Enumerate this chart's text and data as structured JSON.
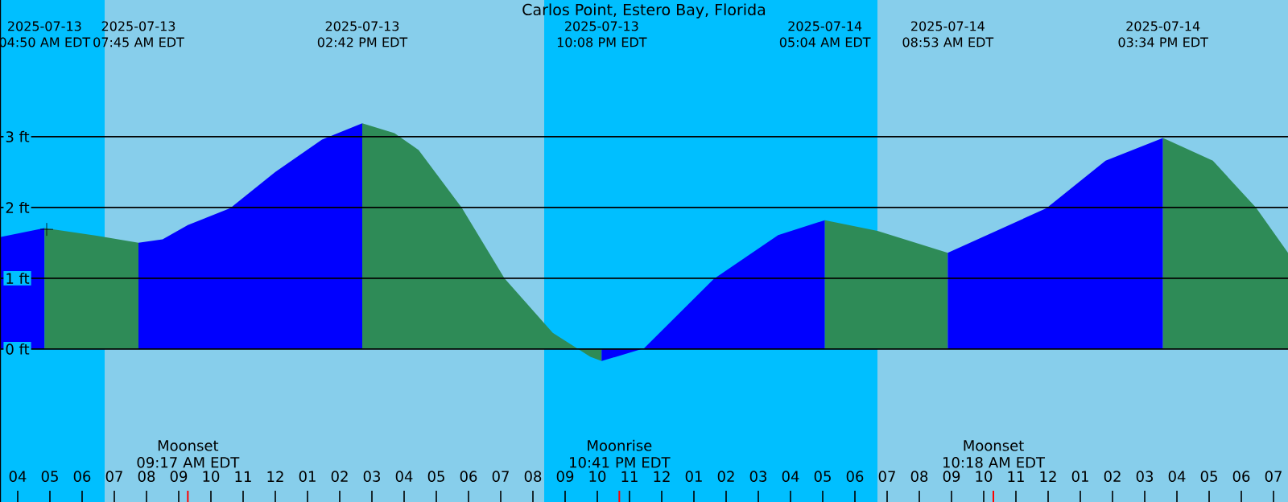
{
  "chart_data": {
    "type": "area",
    "title": "Carlos Point, Estero Bay, Florida",
    "xlim": [
      "2025-07-13T03:27",
      "2025-07-14T19:27"
    ],
    "ylim": [
      -2.16,
      4.93
    ],
    "xticks": [
      {
        "value": "2025-07-13T04:00",
        "label": "04"
      },
      {
        "value": "2025-07-13T05:00",
        "label": "05"
      },
      {
        "value": "2025-07-13T06:00",
        "label": "06"
      },
      {
        "value": "2025-07-13T07:00",
        "label": "07"
      },
      {
        "value": "2025-07-13T08:00",
        "label": "08"
      },
      {
        "value": "2025-07-13T09:00",
        "label": "09"
      },
      {
        "value": "2025-07-13T10:00",
        "label": "10"
      },
      {
        "value": "2025-07-13T11:00",
        "label": "11"
      },
      {
        "value": "2025-07-13T12:00",
        "label": "12"
      },
      {
        "value": "2025-07-13T13:00",
        "label": "01"
      },
      {
        "value": "2025-07-13T14:00",
        "label": "02"
      },
      {
        "value": "2025-07-13T15:00",
        "label": "03"
      },
      {
        "value": "2025-07-13T16:00",
        "label": "04"
      },
      {
        "value": "2025-07-13T17:00",
        "label": "05"
      },
      {
        "value": "2025-07-13T18:00",
        "label": "06"
      },
      {
        "value": "2025-07-13T19:00",
        "label": "07"
      },
      {
        "value": "2025-07-13T20:00",
        "label": "08"
      },
      {
        "value": "2025-07-13T21:00",
        "label": "09"
      },
      {
        "value": "2025-07-13T22:00",
        "label": "10"
      },
      {
        "value": "2025-07-13T23:00",
        "label": "11"
      },
      {
        "value": "2025-07-14T00:00",
        "label": "12"
      },
      {
        "value": "2025-07-14T01:00",
        "label": "01"
      },
      {
        "value": "2025-07-14T02:00",
        "label": "02"
      },
      {
        "value": "2025-07-14T03:00",
        "label": "03"
      },
      {
        "value": "2025-07-14T04:00",
        "label": "04"
      },
      {
        "value": "2025-07-14T05:00",
        "label": "05"
      },
      {
        "value": "2025-07-14T06:00",
        "label": "06"
      },
      {
        "value": "2025-07-14T07:00",
        "label": "07"
      },
      {
        "value": "2025-07-14T08:00",
        "label": "08"
      },
      {
        "value": "2025-07-14T09:00",
        "label": "09"
      },
      {
        "value": "2025-07-14T10:00",
        "label": "10"
      },
      {
        "value": "2025-07-14T11:00",
        "label": "11"
      },
      {
        "value": "2025-07-14T12:00",
        "label": "12"
      },
      {
        "value": "2025-07-14T13:00",
        "label": "01"
      },
      {
        "value": "2025-07-14T14:00",
        "label": "02"
      },
      {
        "value": "2025-07-14T15:00",
        "label": "03"
      },
      {
        "value": "2025-07-14T16:00",
        "label": "04"
      },
      {
        "value": "2025-07-14T17:00",
        "label": "05"
      },
      {
        "value": "2025-07-14T18:00",
        "label": "06"
      },
      {
        "value": "2025-07-14T19:00",
        "label": "07"
      }
    ],
    "yticks": [
      {
        "value": 0,
        "label": "0 ft"
      },
      {
        "value": 1,
        "label": "1 ft"
      },
      {
        "value": 2,
        "label": "2 ft"
      },
      {
        "value": 3,
        "label": "3 ft"
      }
    ],
    "x2lim": [
      "2025-07-13T03:27",
      "2025-07-14T19:27"
    ],
    "x2ticks": [
      {
        "value": "2025-07-13T04:50",
        "label": "2025-07-13 04:50 AM EDT"
      },
      {
        "value": "2025-07-13T07:45",
        "label": "2025-07-13 07:45 AM EDT"
      },
      {
        "value": "2025-07-13T14:42",
        "label": "2025-07-13 02:42 PM EDT"
      },
      {
        "value": "2025-07-13T22:08",
        "label": "2025-07-13 10:08 PM EDT"
      },
      {
        "value": "2025-07-14T05:04",
        "label": "2025-07-14 05:04 AM EDT"
      },
      {
        "value": "2025-07-14T08:53",
        "label": "2025-07-14 08:53 AM EDT"
      },
      {
        "value": "2025-07-14T15:34",
        "label": "2025-07-14 03:34 PM EDT"
      }
    ],
    "grid": "y",
    "bands": [
      {
        "axis": "x",
        "from": "2025-07-13T03:27",
        "to": "2025-07-13T06:42",
        "color": "#00bfff"
      },
      {
        "axis": "x",
        "from": "2025-07-13T06:42",
        "to": "2025-07-13T20:21",
        "color": "#87ceeb"
      },
      {
        "axis": "x",
        "from": "2025-07-13T20:21",
        "to": "2025-07-14T06:42",
        "color": "#00bfff"
      },
      {
        "axis": "x",
        "from": "2025-07-14T06:42",
        "to": "2025-07-14T19:27",
        "color": "#87ceeb"
      }
    ],
    "series": [
      {
        "color": "#0000ff",
        "x": [
          "2025-07-13T03:27",
          "2025-07-13T04:50"
        ],
        "values": [
          1.58,
          1.71
        ]
      },
      {
        "color": "#2e8b57",
        "x": [
          "2025-07-13T04:50",
          "2025-07-13T06:27",
          "2025-07-13T07:45"
        ],
        "values": [
          1.71,
          1.6,
          1.5
        ]
      },
      {
        "color": "#0000ff",
        "x": [
          "2025-07-13T07:45",
          "2025-07-13T08:30",
          "2025-07-13T09:17",
          "2025-07-13T10:36",
          "2025-07-13T12:00",
          "2025-07-13T13:27",
          "2025-07-13T14:42"
        ],
        "values": [
          1.5,
          1.55,
          1.75,
          1.99,
          2.5,
          2.96,
          3.19
        ]
      },
      {
        "color": "#2e8b57",
        "x": [
          "2025-07-13T14:42",
          "2025-07-13T15:42",
          "2025-07-13T16:27",
          "2025-07-13T17:47",
          "2025-07-13T19:07",
          "2025-07-13T20:37",
          "2025-07-13T21:47",
          "2025-07-13T22:08"
        ],
        "values": [
          3.19,
          3.05,
          2.81,
          2.0,
          1.0,
          0.23,
          -0.11,
          -0.17
        ]
      },
      {
        "color": "#0000ff",
        "x": [
          "2025-07-13T22:08",
          "2025-07-13T23:27",
          "2025-07-14T01:37",
          "2025-07-14T03:37",
          "2025-07-14T05:04"
        ],
        "values": [
          -0.17,
          0.01,
          0.99,
          1.61,
          1.82
        ]
      },
      {
        "color": "#2e8b57",
        "x": [
          "2025-07-14T05:04",
          "2025-07-14T06:42",
          "2025-07-14T08:53"
        ],
        "values": [
          1.82,
          1.67,
          1.36
        ]
      },
      {
        "color": "#0000ff",
        "x": [
          "2025-07-14T08:53",
          "2025-07-14T11:57",
          "2025-07-14T13:47",
          "2025-07-14T15:34"
        ],
        "values": [
          1.36,
          1.99,
          2.66,
          2.98
        ]
      },
      {
        "color": "#2e8b57",
        "x": [
          "2025-07-14T15:34",
          "2025-07-14T17:07",
          "2025-07-14T18:27",
          "2025-07-14T19:27"
        ],
        "values": [
          2.98,
          2.66,
          2.0,
          1.36
        ]
      },
      {
        "type": "scatter",
        "color": "#000000",
        "marker": "cross",
        "x": [
          "2025-07-13T04:54"
        ],
        "values": [
          1.69
        ]
      }
    ],
    "annotations": [
      {
        "text": "Moonset 09:17 AM EDT",
        "x": "2025-07-13T09:17",
        "y": -2.16
      },
      {
        "text": "Moonrise 10:41 PM EDT",
        "x": "2025-07-13T22:41",
        "y": -2.16
      },
      {
        "text": "Moonset 10:18 AM EDT",
        "x": "2025-07-14T10:18",
        "y": -2.16
      }
    ]
  }
}
